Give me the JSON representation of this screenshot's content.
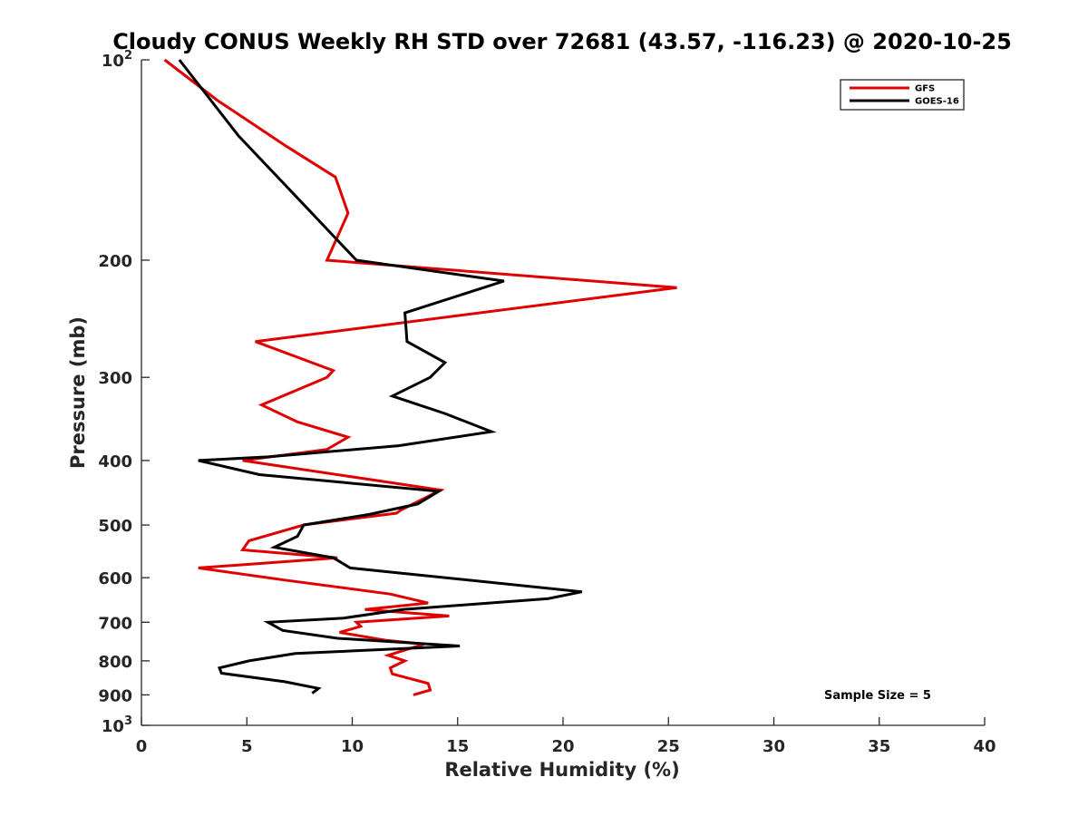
{
  "chart_data": {
    "type": "line",
    "title": "Cloudy CONUS Weekly RH STD over 72681 (43.57, -116.23) @ 2020-10-25",
    "xlabel": "Relative Humidity (%)",
    "ylabel": "Pressure (mb)",
    "xlim": [
      0,
      40
    ],
    "ylim": [
      1000,
      100
    ],
    "y_scale": "log",
    "y_reversed": true,
    "grid": false,
    "legend_position": "top-right",
    "x_ticks": [
      "0",
      "5",
      "10",
      "15",
      "20",
      "25",
      "30",
      "35",
      "40"
    ],
    "y_ticks": [
      {
        "value": 100,
        "base": "10",
        "exp": "2"
      },
      {
        "value": 200,
        "label": "200"
      },
      {
        "value": 300,
        "label": "300"
      },
      {
        "value": 400,
        "label": "400"
      },
      {
        "value": 500,
        "label": "500"
      },
      {
        "value": 600,
        "label": "600"
      },
      {
        "value": 700,
        "label": "700"
      },
      {
        "value": 800,
        "label": "800"
      },
      {
        "value": 900,
        "label": "900"
      },
      {
        "value": 1000,
        "base": "10",
        "exp": "3"
      }
    ],
    "annotation": "Sample Size = 5",
    "series": [
      {
        "name": "GFS",
        "color": "#e00000",
        "points": [
          [
            1.1,
            100
          ],
          [
            3.6,
            115
          ],
          [
            6.9,
            135
          ],
          [
            9.2,
            150
          ],
          [
            9.8,
            170
          ],
          [
            8.8,
            200
          ],
          [
            25.4,
            220
          ],
          [
            5.4,
            265
          ],
          [
            9.1,
            293
          ],
          [
            8.8,
            300
          ],
          [
            5.7,
            330
          ],
          [
            7.4,
            350
          ],
          [
            9.8,
            369
          ],
          [
            8.8,
            385
          ],
          [
            4.8,
            400
          ],
          [
            14.2,
            443
          ],
          [
            12.3,
            475
          ],
          [
            12.1,
            480
          ],
          [
            7.7,
            500
          ],
          [
            5.1,
            528
          ],
          [
            4.8,
            545
          ],
          [
            9.3,
            560
          ],
          [
            2.7,
            580
          ],
          [
            6.8,
            605
          ],
          [
            11.8,
            635
          ],
          [
            13.6,
            655
          ],
          [
            10.6,
            670
          ],
          [
            14.6,
            685
          ],
          [
            10.2,
            700
          ],
          [
            10.4,
            710
          ],
          [
            9.4,
            725
          ],
          [
            11.6,
            745
          ],
          [
            13.4,
            755
          ],
          [
            11.7,
            785
          ],
          [
            12.5,
            800
          ],
          [
            11.8,
            820
          ],
          [
            11.9,
            837
          ],
          [
            13.6,
            865
          ],
          [
            13.7,
            885
          ],
          [
            12.9,
            900
          ]
        ]
      },
      {
        "name": "GOES-16",
        "color": "#000000",
        "points": [
          [
            1.8,
            100
          ],
          [
            4.6,
            130
          ],
          [
            7.3,
            160
          ],
          [
            10.2,
            200
          ],
          [
            17.2,
            215
          ],
          [
            12.5,
            240
          ],
          [
            12.6,
            265
          ],
          [
            14.4,
            285
          ],
          [
            13.7,
            300
          ],
          [
            11.9,
            320
          ],
          [
            14.4,
            340
          ],
          [
            16.6,
            362
          ],
          [
            12.2,
            380
          ],
          [
            6.0,
            395
          ],
          [
            2.7,
            400
          ],
          [
            5.6,
            420
          ],
          [
            14.1,
            445
          ],
          [
            13.1,
            465
          ],
          [
            10.8,
            482
          ],
          [
            7.7,
            500
          ],
          [
            7.4,
            520
          ],
          [
            6.3,
            540
          ],
          [
            9.1,
            560
          ],
          [
            9.9,
            580
          ],
          [
            20.9,
            630
          ],
          [
            19.3,
            645
          ],
          [
            12.4,
            670
          ],
          [
            9.6,
            690
          ],
          [
            6.0,
            700
          ],
          [
            6.7,
            720
          ],
          [
            9.3,
            740
          ],
          [
            15.1,
            760
          ],
          [
            7.3,
            780
          ],
          [
            5.1,
            800
          ],
          [
            3.7,
            820
          ],
          [
            3.8,
            835
          ],
          [
            6.8,
            860
          ],
          [
            8.4,
            880
          ],
          [
            8.1,
            895
          ]
        ]
      }
    ]
  }
}
